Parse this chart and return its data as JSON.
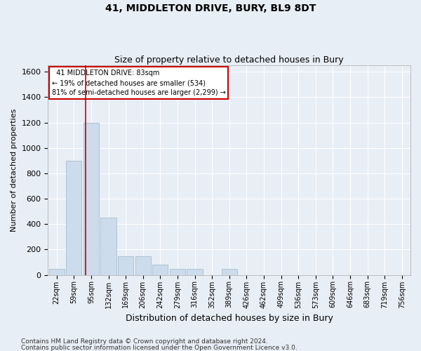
{
  "title": "41, MIDDLETON DRIVE, BURY, BL9 8DT",
  "subtitle": "Size of property relative to detached houses in Bury",
  "xlabel": "Distribution of detached houses by size in Bury",
  "ylabel": "Number of detached properties",
  "footnote1": "Contains HM Land Registry data © Crown copyright and database right 2024.",
  "footnote2": "Contains public sector information licensed under the Open Government Licence v3.0.",
  "bin_labels": [
    "22sqm",
    "59sqm",
    "95sqm",
    "132sqm",
    "169sqm",
    "206sqm",
    "242sqm",
    "279sqm",
    "316sqm",
    "352sqm",
    "389sqm",
    "426sqm",
    "462sqm",
    "499sqm",
    "536sqm",
    "573sqm",
    "609sqm",
    "646sqm",
    "683sqm",
    "719sqm",
    "756sqm"
  ],
  "bar_values": [
    50,
    900,
    1200,
    450,
    150,
    150,
    80,
    50,
    50,
    0,
    50,
    0,
    0,
    0,
    0,
    0,
    0,
    0,
    0,
    0,
    0
  ],
  "bar_color": "#ccdcec",
  "bar_edge_color": "#a8bece",
  "background_color": "#e8eef5",
  "grid_color": "#ffffff",
  "ylim": [
    0,
    1650
  ],
  "yticks": [
    0,
    200,
    400,
    600,
    800,
    1000,
    1200,
    1400,
    1600
  ],
  "annotation_text": "  41 MIDDLETON DRIVE: 83sqm  \n← 19% of detached houses are smaller (534)\n81% of semi-detached houses are larger (2,299) →",
  "annotation_box_facecolor": "#ffffff",
  "annotation_box_edgecolor": "#cc0000",
  "red_line_color": "#cc0000",
  "title_fontsize": 10,
  "subtitle_fontsize": 9,
  "ylabel_fontsize": 8,
  "xlabel_fontsize": 9,
  "ytick_fontsize": 8,
  "xtick_fontsize": 7,
  "annot_fontsize": 7,
  "footnote_fontsize": 6.5
}
